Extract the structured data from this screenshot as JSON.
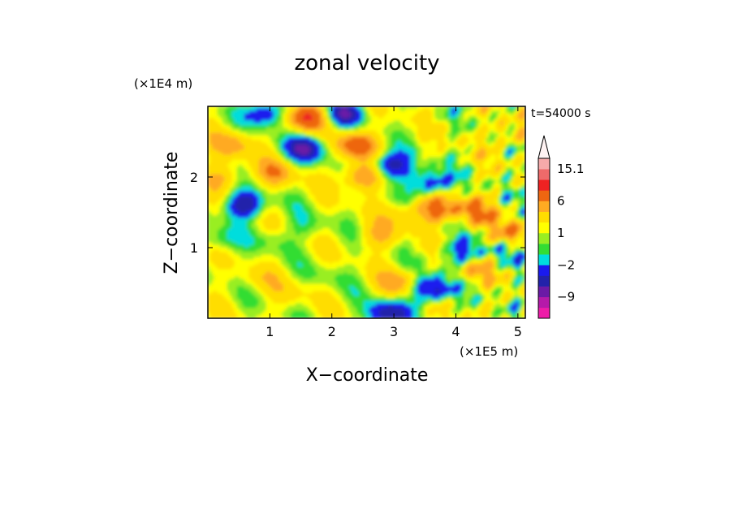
{
  "chart_data": {
    "type": "heatmap",
    "title": "zonal velocity",
    "xlabel": "X−coordinate",
    "ylabel": "Z−coordinate",
    "x_unit_label": "(×1E5 m)",
    "y_unit_label": "(×1E4 m)",
    "time_label": "t=54000 s",
    "xlim": [
      0,
      5.12
    ],
    "ylim": [
      0,
      3.0
    ],
    "x_ticks": [
      {
        "value": 1,
        "label": "1"
      },
      {
        "value": 2,
        "label": "2"
      },
      {
        "value": 3,
        "label": "3"
      },
      {
        "value": 4,
        "label": "4"
      },
      {
        "value": 5,
        "label": "5"
      }
    ],
    "y_ticks": [
      {
        "value": 1,
        "label": "1"
      },
      {
        "value": 2,
        "label": "2"
      }
    ],
    "colorbar": {
      "levels": [
        -15,
        -12,
        -9,
        -6,
        -4,
        -2,
        -1,
        0,
        1,
        2,
        4,
        6,
        9,
        12,
        15.1
      ],
      "colors": [
        "#ee1ca8",
        "#b51aa9",
        "#6b1aa6",
        "#2222aa",
        "#1a1aee",
        "#00dddd",
        "#33dd33",
        "#99ee22",
        "#ffff00",
        "#ffdd00",
        "#ffaa22",
        "#ee6611",
        "#ee2222",
        "#ee6a6a",
        "#f6aaaa"
      ],
      "tick_labels": [
        {
          "level": 15.1,
          "label": "15.1"
        },
        {
          "level": 6,
          "label": "6"
        },
        {
          "level": 1,
          "label": "1"
        },
        {
          "level": -2,
          "label": "−2"
        },
        {
          "level": -9,
          "label": "−9"
        }
      ]
    },
    "field_features": [
      {
        "x": 1.6,
        "z": 2.4,
        "value": -7
      },
      {
        "x": 2.95,
        "z": 2.15,
        "value": -7
      },
      {
        "x": 0.6,
        "z": 1.6,
        "value": -7
      },
      {
        "x": 0.95,
        "z": 2.9,
        "value": -6
      },
      {
        "x": 2.2,
        "z": 2.9,
        "value": -6
      },
      {
        "x": 3.6,
        "z": 1.9,
        "value": -6
      },
      {
        "x": 2.4,
        "z": 2.45,
        "value": 7
      },
      {
        "x": 1.6,
        "z": 2.85,
        "value": 8
      },
      {
        "x": 2.5,
        "z": 2.0,
        "value": 6
      },
      {
        "x": 0.4,
        "z": 2.45,
        "value": 4
      },
      {
        "x": 1.1,
        "z": 2.05,
        "value": 4
      },
      {
        "x": 3.7,
        "z": 1.55,
        "value": 6
      },
      {
        "x": 4.3,
        "z": 1.5,
        "value": 5
      },
      {
        "x": 4.9,
        "z": 1.2,
        "value": 5
      },
      {
        "x": 4.9,
        "z": 2.6,
        "value": 3
      },
      {
        "x": 0.2,
        "z": 1.1,
        "value": -2.5
      },
      {
        "x": 3.2,
        "z": 1.45,
        "value": 2.5
      },
      {
        "x": 3.1,
        "z": 0.5,
        "value": 4
      },
      {
        "x": 4.3,
        "z": 0.7,
        "value": 4
      },
      {
        "x": 1.1,
        "z": 1.1,
        "value": -1.5
      },
      {
        "x": 1.6,
        "z": 1.3,
        "value": -1.5
      },
      {
        "x": 2.0,
        "z": 0.6,
        "value": -1
      },
      {
        "x": 3.6,
        "z": 0.4,
        "value": -7
      },
      {
        "x": 2.9,
        "z": 0.05,
        "value": -7
      },
      {
        "x": 4.1,
        "z": 0.9,
        "value": -5
      },
      {
        "x": 0.8,
        "z": 0.55,
        "value": 1.5
      },
      {
        "x": 1.3,
        "z": 0.35,
        "value": 1.5
      },
      {
        "x": 4.7,
        "z": 0.9,
        "value": -2.5
      },
      {
        "x": 0.25,
        "z": 2.0,
        "value": 3
      },
      {
        "x": 2.75,
        "z": 1.15,
        "value": 3
      }
    ]
  }
}
